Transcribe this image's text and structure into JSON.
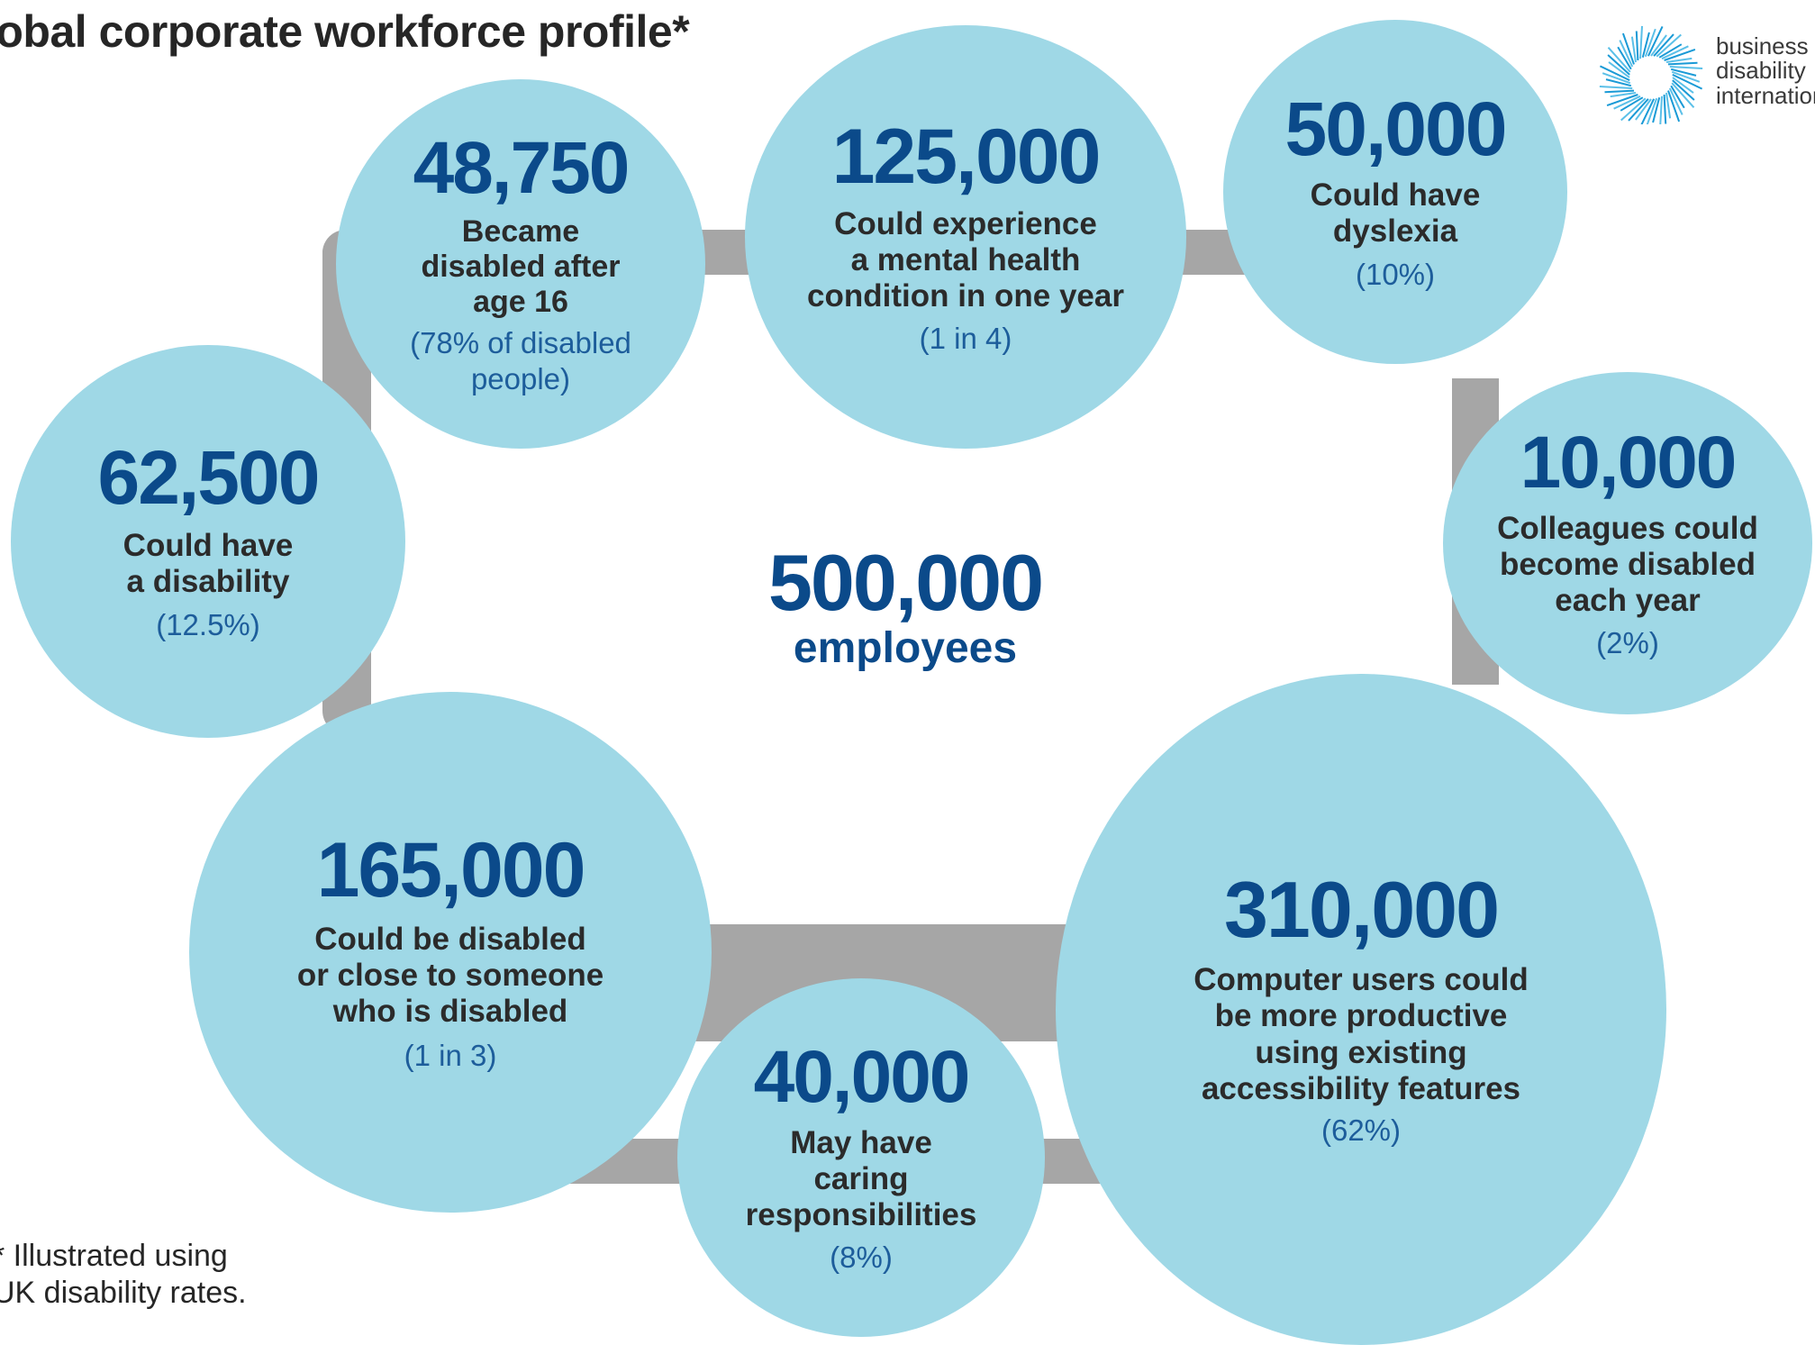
{
  "title": "lobal corporate workforce profile*",
  "logo": {
    "lines": [
      "business",
      "disability",
      "internation"
    ],
    "icon": "starburst-ring-icon"
  },
  "center": {
    "value": "500,000",
    "label": "employees"
  },
  "footnote": {
    "line1": "* Illustrated using",
    "line2": "UK disability rates."
  },
  "circles": [
    {
      "id": "disability",
      "value": "62,500",
      "desc": [
        "Could have",
        "a disability"
      ],
      "pct": "(12.5%)"
    },
    {
      "id": "after16",
      "value": "48,750",
      "desc": [
        "Became",
        "disabled after",
        "age 16"
      ],
      "pct": [
        "(78% of disabled",
        "people)"
      ]
    },
    {
      "id": "mental",
      "value": "125,000",
      "desc": [
        "Could experience",
        "a mental health",
        "condition in one year"
      ],
      "pct": "(1 in 4)"
    },
    {
      "id": "dyslexia",
      "value": "50,000",
      "desc": [
        "Could have",
        "dyslexia"
      ],
      "pct": "(10%)"
    },
    {
      "id": "peryear",
      "value": "10,000",
      "desc": [
        "Colleagues could",
        "become disabled",
        "each year"
      ],
      "pct": "(2%)"
    },
    {
      "id": "close",
      "value": "165,000",
      "desc": [
        "Could be disabled",
        "or close to someone",
        "who is disabled"
      ],
      "pct": "(1 in 3)"
    },
    {
      "id": "caring",
      "value": "40,000",
      "desc": [
        "May have",
        "caring",
        "responsibilities"
      ],
      "pct": "(8%)"
    },
    {
      "id": "computer",
      "value": "310,000",
      "desc": [
        "Computer users could",
        "be more productive",
        "using existing",
        "accessibility features"
      ],
      "pct": "(62%)"
    }
  ],
  "colors": {
    "circle": "#9fd8e6",
    "number": "#0b4a8a",
    "frame": "#a6a6a6"
  }
}
